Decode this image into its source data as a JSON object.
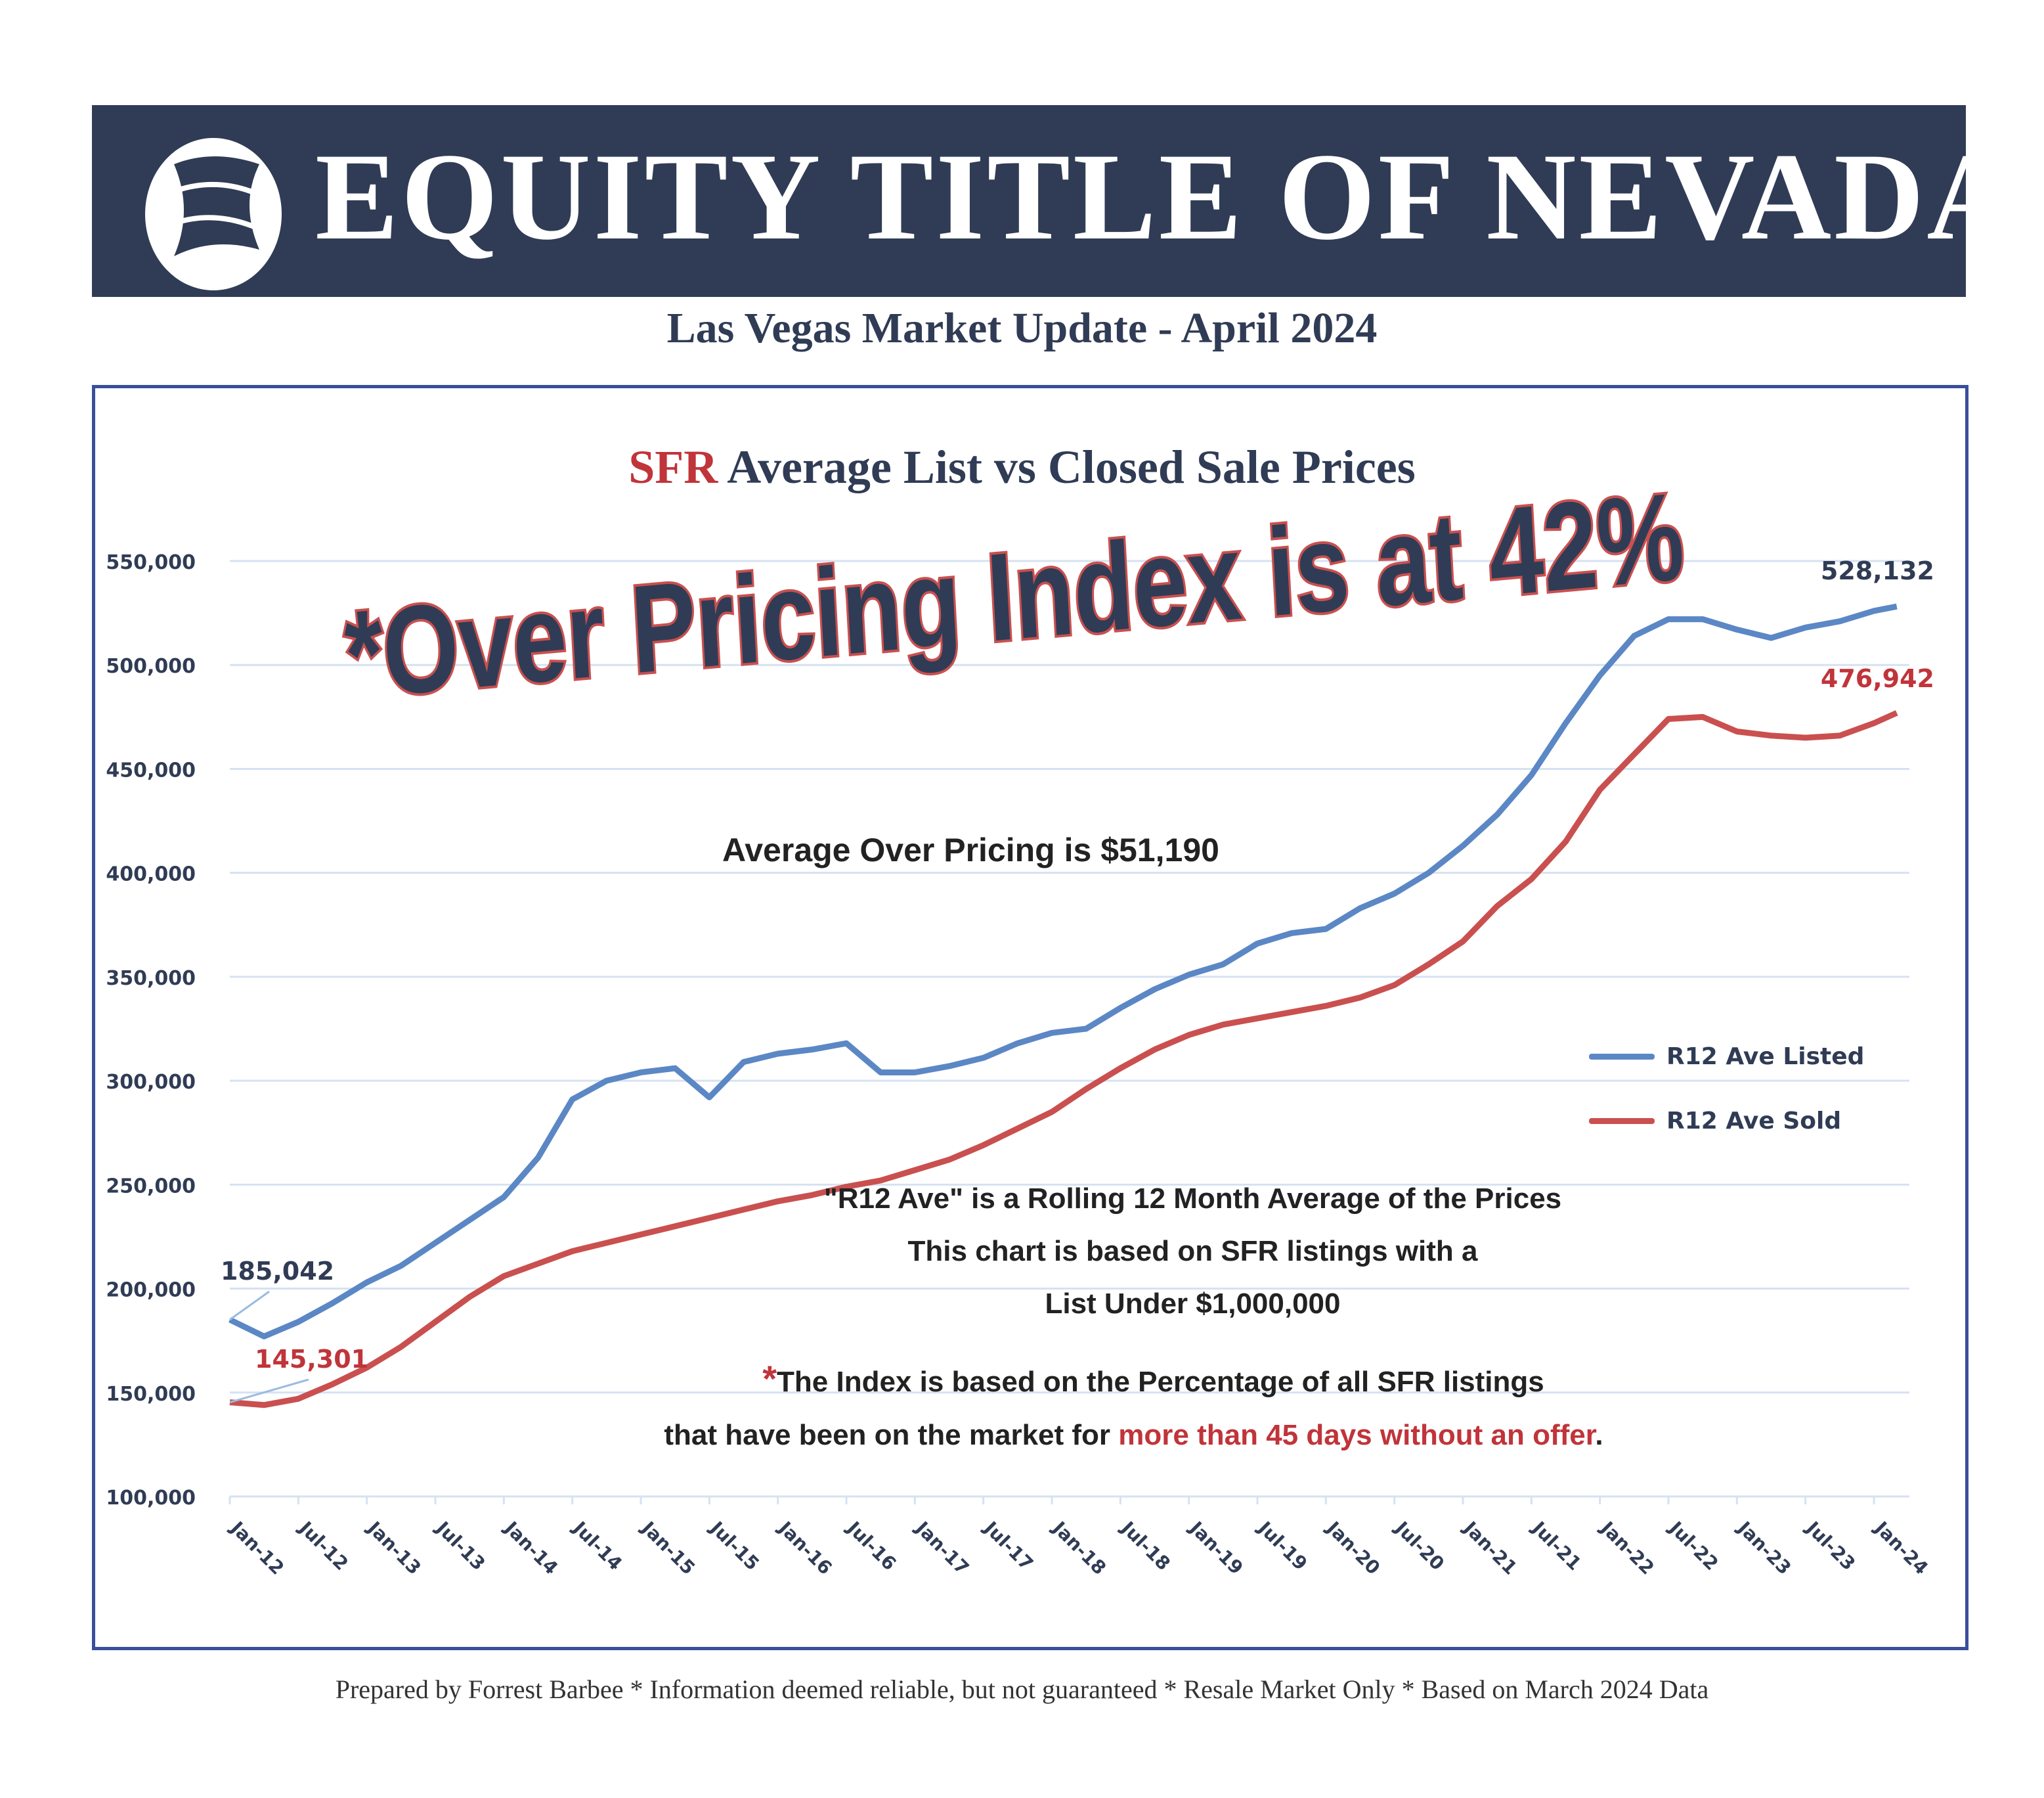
{
  "banner": {
    "title": "EQUITY TITLE OF NEVADA",
    "logo": "sail-globe-logo"
  },
  "subtitle": "Las Vegas Market Update - April 2024",
  "headline": "*Over Pricing Index is at 42%",
  "average_over_pricing": "Average Over Pricing is $51,190",
  "notes": {
    "line1": "\"R12 Ave\" is a Rolling 12 Month Average of the Prices",
    "line2": "This chart is based on SFR listings with a",
    "line3": "List Under $1,000,000",
    "asterisk": "*",
    "line4": "The Index is based on the Percentage of all SFR listings",
    "line5_a": "that have been on the market for ",
    "line5_b": "more than 45 days without an offer",
    "line5_c": "."
  },
  "footer": "Prepared by Forrest Barbee * Information deemed reliable, but not guaranteed * Resale Market Only * Based on March 2024 Data",
  "colors": {
    "listed": "#5b87c5",
    "sold": "#c9504f",
    "navy": "#303c55",
    "grid": "#d6e2f2"
  },
  "chart_data": {
    "type": "line",
    "title_prefix": "SFR",
    "title": "Average List vs Closed Sale Prices",
    "xlabel": "",
    "ylabel": "",
    "ylim": [
      100000,
      550000
    ],
    "yticks": [
      "100,000",
      "150,000",
      "200,000",
      "250,000",
      "300,000",
      "350,000",
      "400,000",
      "450,000",
      "500,000",
      "550,000"
    ],
    "ytick_values": [
      100000,
      150000,
      200000,
      250000,
      300000,
      350000,
      400000,
      450000,
      500000,
      550000
    ],
    "xticks": [
      "Jan-12",
      "Jul-12",
      "Jan-13",
      "Jul-13",
      "Jan-14",
      "Jul-14",
      "Jan-15",
      "Jul-15",
      "Jan-16",
      "Jul-16",
      "Jan-17",
      "Jul-17",
      "Jan-18",
      "Jul-18",
      "Jan-19",
      "Jul-19",
      "Jan-20",
      "Jul-20",
      "Jan-21",
      "Jul-21",
      "Jan-22",
      "Jul-22",
      "Jan-23",
      "Jul-23",
      "Jan-24"
    ],
    "x_months_since_jan12": [
      0,
      3,
      6,
      9,
      12,
      15,
      18,
      21,
      24,
      27,
      30,
      33,
      36,
      39,
      42,
      45,
      48,
      51,
      54,
      57,
      60,
      63,
      66,
      69,
      72,
      75,
      78,
      81,
      84,
      87,
      90,
      93,
      96,
      99,
      102,
      105,
      108,
      111,
      114,
      117,
      120,
      123,
      126,
      129,
      132,
      135,
      138,
      141,
      144,
      146
    ],
    "grid": true,
    "legend": "right",
    "series": [
      {
        "name": "R12 Ave Listed",
        "start_label": "185,042",
        "end_label": "528,132",
        "values": [
          185042,
          177000,
          184000,
          193000,
          203000,
          211000,
          222000,
          233000,
          244000,
          263000,
          291000,
          300000,
          304000,
          306000,
          292000,
          309000,
          313000,
          315000,
          318000,
          304000,
          304000,
          307000,
          311000,
          318000,
          323000,
          325000,
          335000,
          344000,
          351000,
          356000,
          366000,
          371000,
          373000,
          383000,
          390000,
          400000,
          413000,
          428000,
          447000,
          472000,
          495000,
          514000,
          522000,
          522000,
          517000,
          513000,
          518000,
          521000,
          526000,
          528132
        ]
      },
      {
        "name": "R12 Ave Sold",
        "start_label": "145,301",
        "end_label": "476,942",
        "values": [
          145301,
          144000,
          147000,
          154000,
          162000,
          172000,
          184000,
          196000,
          206000,
          212000,
          218000,
          222000,
          226000,
          230000,
          234000,
          238000,
          242000,
          245000,
          249000,
          252000,
          257000,
          262000,
          269000,
          277000,
          285000,
          296000,
          306000,
          315000,
          322000,
          327000,
          330000,
          333000,
          336000,
          340000,
          346000,
          356000,
          367000,
          384000,
          397000,
          415000,
          440000,
          457000,
          474000,
          475000,
          468000,
          466000,
          465000,
          466000,
          472000,
          476942
        ]
      }
    ]
  }
}
